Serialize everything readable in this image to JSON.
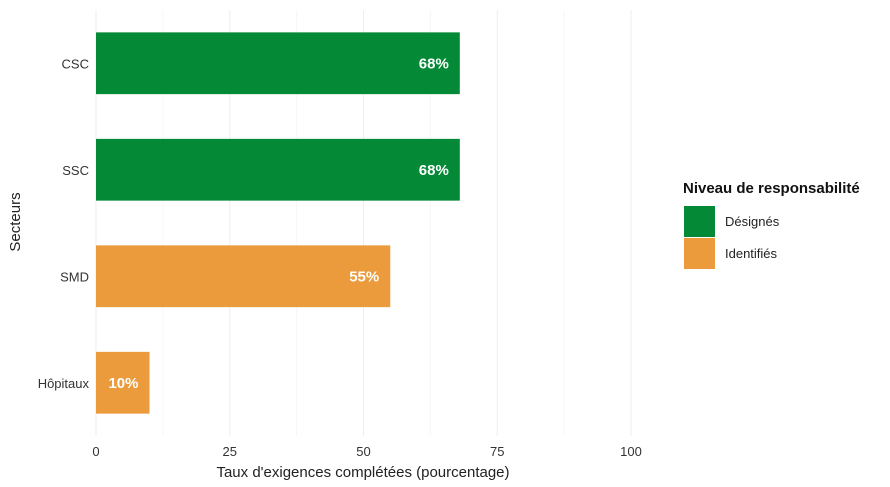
{
  "chart_data": {
    "type": "bar",
    "orientation": "horizontal",
    "title": "",
    "xlabel": "Taux d'exigences complétées (pourcentage)",
    "ylabel": "Secteurs",
    "xlim": [
      0,
      100
    ],
    "x_ticks": [
      "0",
      "25",
      "50",
      "75",
      "100"
    ],
    "categories": [
      "CSC",
      "SSC",
      "SMD",
      "Hôpitaux"
    ],
    "values": [
      68,
      68,
      55,
      10
    ],
    "data_labels": [
      "68%",
      "68%",
      "55%",
      "10%"
    ],
    "groups": [
      "Désignés",
      "Désignés",
      "Identifiés",
      "Identifiés"
    ],
    "grid": true,
    "legend": {
      "title": "Niveau de responsabilité",
      "placement": "right",
      "items": [
        {
          "label": "Désignés",
          "color": "#048a37"
        },
        {
          "label": "Identifiés",
          "color": "#eb9b3b"
        }
      ]
    }
  }
}
